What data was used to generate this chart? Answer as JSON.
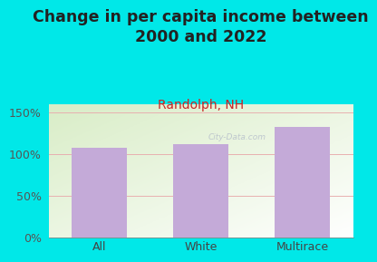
{
  "title": "Change in per capita income between\n2000 and 2022",
  "subtitle": "Randolph, NH",
  "categories": [
    "All",
    "White",
    "Multirace"
  ],
  "values": [
    108,
    112,
    133
  ],
  "bar_color": "#c4aad8",
  "title_fontsize": 12.5,
  "subtitle_fontsize": 10,
  "subtitle_color": "#cc2222",
  "tick_label_fontsize": 9,
  "outer_bg_color": "#00e8e8",
  "yticks": [
    0,
    50,
    100,
    150
  ],
  "ylim": [
    0,
    160
  ],
  "grid_color": "#e8b0b0",
  "axis_label_fontsize": 9,
  "watermark": "City-Data.com",
  "title_color": "#222222"
}
